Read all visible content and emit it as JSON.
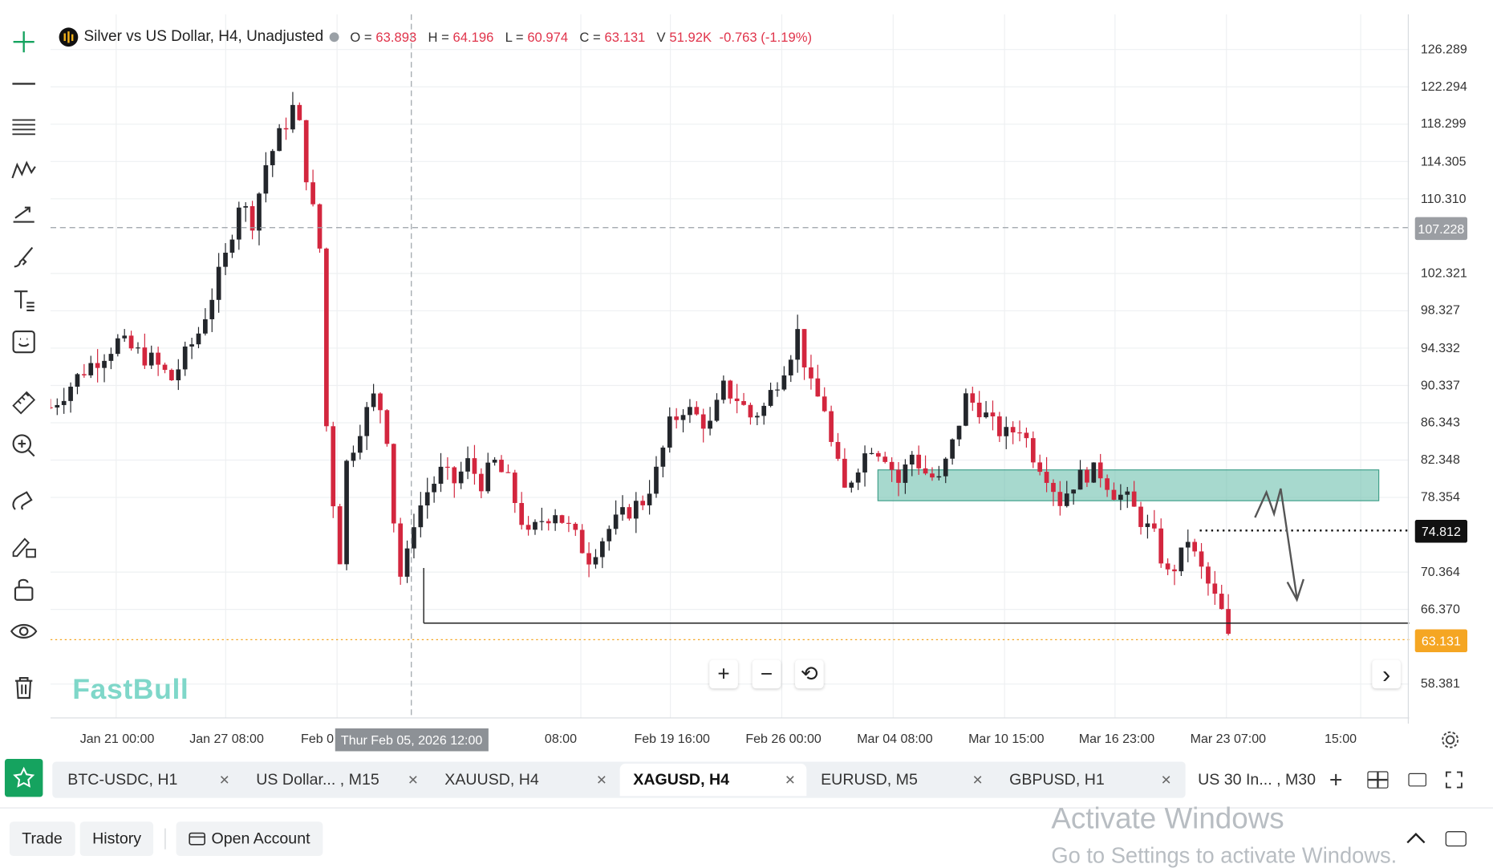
{
  "legend": {
    "symbol": "Silver vs US Dollar, H4, Unadjusted",
    "open_label": "O =",
    "open": "63.893",
    "high_label": "H =",
    "high": "64.196",
    "low_label": "L =",
    "low": "60.974",
    "close_label": "C =",
    "close": "63.131",
    "vol_label": "V",
    "vol": "51.92K",
    "change": "-0.763 (-1.19%)"
  },
  "yaxis": {
    "ticks": [
      "126.289",
      "122.294",
      "118.299",
      "114.305",
      "110.310",
      "102.321",
      "98.327",
      "94.332",
      "90.337",
      "86.343",
      "82.348",
      "78.354",
      "70.364",
      "66.370",
      "58.381"
    ],
    "crosshair_price": "107.228",
    "level_price": "74.812",
    "last_price": "63.131"
  },
  "xaxis": {
    "ticks": [
      "Jan 21 00:00",
      "Jan 27 08:00",
      "Feb 0",
      "08:00",
      "Feb 19 16:00",
      "Feb 26 00:00",
      "Mar 04 08:00",
      "Mar 10 15:00",
      "Mar 16 23:00",
      "Mar 23 07:00",
      "15:00"
    ],
    "crosshair_time": "Thur Feb 05, 2026 12:00"
  },
  "chart_data": {
    "type": "candlestick",
    "title": "Silver vs US Dollar, H4, Unadjusted",
    "ylim": [
      56.0,
      129.0
    ],
    "y_ticks": [
      58.381,
      66.37,
      70.364,
      78.354,
      82.348,
      86.343,
      90.337,
      94.332,
      98.327,
      102.321,
      110.31,
      114.305,
      118.299,
      122.294,
      126.289
    ],
    "price_path": [
      [
        0,
        88
      ],
      [
        5,
        92
      ],
      [
        10,
        95
      ],
      [
        15,
        93
      ],
      [
        18,
        91
      ],
      [
        22,
        96
      ],
      [
        26,
        104
      ],
      [
        28,
        110
      ],
      [
        30,
        108
      ],
      [
        32,
        114
      ],
      [
        34,
        117
      ],
      [
        36,
        120
      ],
      [
        37,
        118
      ],
      [
        38,
        113
      ],
      [
        40,
        105
      ],
      [
        41,
        86
      ],
      [
        42,
        78
      ],
      [
        43,
        72
      ],
      [
        44,
        82
      ],
      [
        46,
        86
      ],
      [
        48,
        89
      ],
      [
        49,
        88
      ],
      [
        50,
        85
      ],
      [
        51,
        76
      ],
      [
        52,
        70
      ],
      [
        53,
        72
      ],
      [
        54,
        76
      ],
      [
        56,
        79
      ],
      [
        58,
        81
      ],
      [
        60,
        80
      ],
      [
        62,
        82
      ],
      [
        64,
        80
      ],
      [
        66,
        82
      ],
      [
        68,
        80
      ],
      [
        70,
        76
      ],
      [
        71,
        74
      ],
      [
        73,
        76
      ],
      [
        75,
        77
      ],
      [
        78,
        74
      ],
      [
        80,
        72
      ],
      [
        81,
        73
      ],
      [
        83,
        75
      ],
      [
        86,
        77
      ],
      [
        88,
        78
      ],
      [
        90,
        81
      ],
      [
        92,
        86
      ],
      [
        94,
        88
      ],
      [
        96,
        87
      ],
      [
        98,
        86
      ],
      [
        100,
        90
      ],
      [
        102,
        89
      ],
      [
        104,
        87
      ],
      [
        106,
        88
      ],
      [
        108,
        91
      ],
      [
        110,
        94
      ],
      [
        111,
        96
      ],
      [
        112,
        93
      ],
      [
        113,
        90
      ],
      [
        115,
        88
      ],
      [
        116,
        84
      ],
      [
        118,
        79
      ],
      [
        120,
        82
      ],
      [
        122,
        84
      ],
      [
        124,
        83
      ],
      [
        126,
        80
      ],
      [
        128,
        83
      ],
      [
        130,
        81
      ],
      [
        132,
        80
      ],
      [
        134,
        84
      ],
      [
        136,
        89
      ],
      [
        138,
        88
      ],
      [
        140,
        86
      ],
      [
        142,
        85
      ],
      [
        144,
        86
      ],
      [
        146,
        83
      ],
      [
        148,
        81
      ],
      [
        150,
        78
      ],
      [
        152,
        80
      ],
      [
        154,
        81
      ],
      [
        156,
        81
      ],
      [
        158,
        79
      ],
      [
        160,
        78
      ],
      [
        162,
        76
      ],
      [
        164,
        74
      ],
      [
        166,
        70
      ],
      [
        168,
        72
      ],
      [
        169,
        74
      ],
      [
        170,
        72
      ],
      [
        172,
        69
      ],
      [
        174,
        66
      ],
      [
        175,
        63.131
      ]
    ],
    "horizontal_lines": [
      107.228,
      74.812,
      64.9,
      63.131
    ],
    "zone": [
      78.0,
      81.3
    ]
  },
  "controls": {
    "zoom_in": "+",
    "zoom_out": "−",
    "reset": "⟲",
    "scroll_right": "›"
  },
  "brand": "FastBull",
  "tabs": [
    {
      "label": "BTC-USDC, H1",
      "active": false
    },
    {
      "label": "US Dollar... , M15",
      "active": false
    },
    {
      "label": "XAUUSD, H4",
      "active": false
    },
    {
      "label": "XAGUSD, H4",
      "active": true
    },
    {
      "label": "EURUSD, M5",
      "active": false
    },
    {
      "label": "GBPUSD, H1",
      "active": false
    },
    {
      "label": "US 30 In... , M30",
      "active": false
    }
  ],
  "bottom": {
    "trade": "Trade",
    "history": "History",
    "open_account": "Open Account"
  },
  "watermark": {
    "line1": "Activate Windows",
    "line2": "Go to Settings to activate Windows."
  },
  "colors": {
    "up": "#23262b",
    "down": "#d3263e",
    "zone": "#6dbfae",
    "accent": "#15a35f",
    "last_price": "#f5a623"
  }
}
